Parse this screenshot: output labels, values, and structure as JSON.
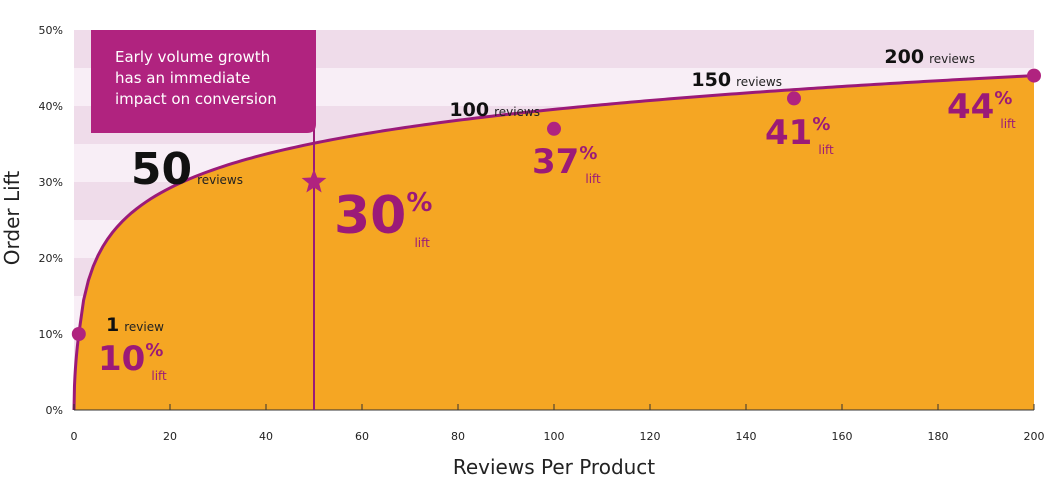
{
  "chart_data": {
    "type": "area",
    "xlabel": "Reviews Per Product",
    "ylabel": "Order Lift",
    "xlim": [
      0,
      200
    ],
    "ylim": [
      0,
      50
    ],
    "x_ticks": [
      "0",
      "20",
      "40",
      "60",
      "80",
      "100",
      "120",
      "140",
      "160",
      "180",
      "200"
    ],
    "y_ticks": [
      "0%",
      "10%",
      "20%",
      "30%",
      "40%",
      "50%"
    ],
    "colors": {
      "fill": "#f5a623",
      "line": "#9b1a78",
      "band_light": "#f8eef6",
      "band_dark": "#efdcea",
      "marker": "#b0237f"
    },
    "points": [
      {
        "x": 1,
        "y": 10,
        "count": "1",
        "unit": "review",
        "pct": "10",
        "sym": "%",
        "lift": "lift",
        "marker": "circle"
      },
      {
        "x": 50,
        "y": 30,
        "count": "50",
        "unit": "reviews",
        "pct": "30",
        "sym": "%",
        "lift": "lift",
        "marker": "star"
      },
      {
        "x": 100,
        "y": 37,
        "count": "100",
        "unit": "reviews",
        "pct": "37",
        "sym": "%",
        "lift": "lift",
        "marker": "circle"
      },
      {
        "x": 150,
        "y": 41,
        "count": "150",
        "unit": "reviews",
        "pct": "41",
        "sym": "%",
        "lift": "lift",
        "marker": "circle"
      },
      {
        "x": 200,
        "y": 44,
        "count": "200",
        "unit": "reviews",
        "pct": "44",
        "sym": "%",
        "lift": "lift",
        "marker": "circle"
      }
    ],
    "callout": {
      "lines": [
        "Early volume growth",
        "has an immediate",
        "impact on conversion"
      ],
      "anchor_x": 50
    }
  }
}
